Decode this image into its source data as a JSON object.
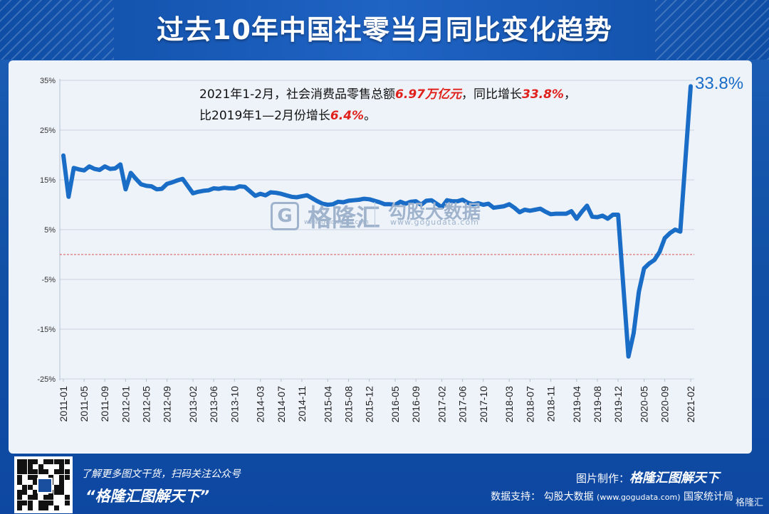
{
  "title": "过去10年中国社零当月同比变化趋势",
  "annotation": {
    "line1_a": "2021年1-2月，社会消费品零售总额",
    "line1_b": "6.97万亿元",
    "line1_c": "，同比增长",
    "line1_d": "33.8%",
    "line1_e": "，",
    "line2_a": "比2019年1—2月份增长",
    "line2_b": "6.4%",
    "line2_c": "。"
  },
  "end_label": "33.8%",
  "watermark": {
    "brand": "格隆汇",
    "brand_url": "www.gelonghui.com",
    "data_brand": "勾股大数据",
    "data_url": "www.gogudata.com"
  },
  "footer": {
    "tagline": "了解更多图文干货，扫码关注公众号",
    "slogan": "“格隆汇图解天下”",
    "made_by_label": "图片制作：",
    "made_by_value": "格隆汇图解天下",
    "source_label": "数据支持：",
    "source_value": "勾股大数据",
    "source_url": "(www.gogudata.com)",
    "source_extra": "国家统计局",
    "corner": "格隆汇"
  },
  "chart_data": {
    "type": "line",
    "title": "过去10年中国社零当月同比变化趋势",
    "xlabel": "",
    "ylabel": "",
    "ylim": [
      -25,
      35
    ],
    "y_ticks": [
      "35%",
      "25%",
      "15%",
      "5%",
      "-5%",
      "-15%",
      "-25%"
    ],
    "x_tick_labels": [
      "2011-01",
      "2011-05",
      "2011-09",
      "2012-01",
      "2012-05",
      "2012-09",
      "2013-02",
      "2013-06",
      "2013-10",
      "2014-03",
      "2014-07",
      "2014-11",
      "2015-04",
      "2015-08",
      "2015-12",
      "2016-05",
      "2016-09",
      "2017-02",
      "2017-06",
      "2017-10",
      "2018-03",
      "2018-07",
      "2018-11",
      "2019-04",
      "2019-08",
      "2019-12",
      "2020-05",
      "2020-09",
      "2021-02"
    ],
    "reference_line": 0,
    "grid": true,
    "series": [
      {
        "color": "#1a6dc6",
        "x": [
          "2011-01",
          "2011-02",
          "2011-03",
          "2011-04",
          "2011-05",
          "2011-06",
          "2011-07",
          "2011-08",
          "2011-09",
          "2011-10",
          "2011-11",
          "2011-12",
          "2012-01",
          "2012-02",
          "2012-03",
          "2012-04",
          "2012-05",
          "2012-06",
          "2012-07",
          "2012-08",
          "2012-09",
          "2012-10",
          "2012-11",
          "2012-12",
          "2013-02",
          "2013-03",
          "2013-04",
          "2013-05",
          "2013-06",
          "2013-07",
          "2013-08",
          "2013-09",
          "2013-10",
          "2013-11",
          "2013-12",
          "2014-02",
          "2014-03",
          "2014-04",
          "2014-05",
          "2014-06",
          "2014-07",
          "2014-08",
          "2014-09",
          "2014-10",
          "2014-11",
          "2014-12",
          "2015-02",
          "2015-03",
          "2015-04",
          "2015-05",
          "2015-06",
          "2015-07",
          "2015-08",
          "2015-09",
          "2015-10",
          "2015-11",
          "2015-12",
          "2016-02",
          "2016-03",
          "2016-04",
          "2016-05",
          "2016-06",
          "2016-07",
          "2016-08",
          "2016-09",
          "2016-10",
          "2016-11",
          "2016-12",
          "2017-02",
          "2017-03",
          "2017-04",
          "2017-05",
          "2017-06",
          "2017-07",
          "2017-08",
          "2017-09",
          "2017-10",
          "2017-11",
          "2017-12",
          "2018-02",
          "2018-03",
          "2018-04",
          "2018-05",
          "2018-06",
          "2018-07",
          "2018-08",
          "2018-09",
          "2018-10",
          "2018-11",
          "2018-12",
          "2019-02",
          "2019-03",
          "2019-04",
          "2019-05",
          "2019-06",
          "2019-07",
          "2019-08",
          "2019-09",
          "2019-10",
          "2019-11",
          "2019-12",
          "2020-02",
          "2020-03",
          "2020-04",
          "2020-05",
          "2020-06",
          "2020-07",
          "2020-08",
          "2020-09",
          "2020-10",
          "2020-11",
          "2020-12",
          "2021-02"
        ],
        "values": [
          19.9,
          11.6,
          17.4,
          17.1,
          16.9,
          17.7,
          17.2,
          17.0,
          17.7,
          17.2,
          17.3,
          18.1,
          13.1,
          16.4,
          15.2,
          14.1,
          13.8,
          13.7,
          13.1,
          13.2,
          14.2,
          14.5,
          14.9,
          15.2,
          12.3,
          12.6,
          12.8,
          12.9,
          13.3,
          13.2,
          13.4,
          13.3,
          13.3,
          13.7,
          13.6,
          11.8,
          12.2,
          11.9,
          12.5,
          12.4,
          12.2,
          11.9,
          11.6,
          11.5,
          11.7,
          11.9,
          10.7,
          10.2,
          10.0,
          10.1,
          10.6,
          10.5,
          10.8,
          10.9,
          11.0,
          11.2,
          11.1,
          10.5,
          10.1,
          10.1,
          10.0,
          10.6,
          10.2,
          10.6,
          10.7,
          10.0,
          10.8,
          10.9,
          9.5,
          10.9,
          10.7,
          10.7,
          11.0,
          10.4,
          10.1,
          10.3,
          10.0,
          10.2,
          9.4,
          9.7,
          10.1,
          9.4,
          8.5,
          9.0,
          8.8,
          9.0,
          9.2,
          8.6,
          8.1,
          8.2,
          8.2,
          8.7,
          7.2,
          8.6,
          9.8,
          7.6,
          7.5,
          7.8,
          7.2,
          8.0,
          8.0,
          -20.5,
          -15.8,
          -7.5,
          -2.8,
          -1.8,
          -1.1,
          0.5,
          3.3,
          4.3,
          5.0,
          4.6,
          33.8
        ]
      }
    ]
  }
}
